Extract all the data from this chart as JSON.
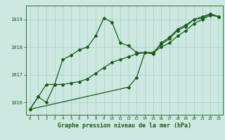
{
  "title": "Graphe pression niveau de la mer (hPa)",
  "bg_color": "#cce8e0",
  "grid_color": "#a8cfc8",
  "line_color": "#1a5c1a",
  "xlim": [
    -0.5,
    23.5
  ],
  "ylim": [
    1015.55,
    1019.5
  ],
  "yticks": [
    1016,
    1017,
    1018,
    1019
  ],
  "xticks": [
    0,
    1,
    2,
    3,
    4,
    5,
    6,
    7,
    8,
    9,
    10,
    11,
    12,
    13,
    14,
    15,
    16,
    17,
    18,
    19,
    20,
    21,
    22,
    23
  ],
  "series_bump": [
    1015.75,
    1016.2,
    1016.0,
    1016.65,
    1017.55,
    1017.7,
    1017.9,
    1018.0,
    1018.4,
    1019.05,
    1018.9,
    1018.15,
    1018.05,
    1017.8,
    1017.8,
    1017.75,
    1018.15,
    1018.35,
    1018.65,
    1018.8,
    1019.0,
    1019.1,
    1019.2,
    1019.1
  ],
  "series_flat": [
    1015.75,
    1016.2,
    1016.65,
    1016.65,
    1016.65,
    1016.7,
    1016.75,
    1016.85,
    1017.05,
    1017.25,
    1017.45,
    1017.55,
    1017.65,
    1017.75,
    1017.8,
    1017.8,
    1018.0,
    1018.15,
    1018.4,
    1018.6,
    1018.85,
    1019.0,
    1019.15,
    1019.1
  ],
  "series_main": [
    1015.75,
    null,
    null,
    null,
    null,
    null,
    null,
    null,
    null,
    null,
    null,
    null,
    1016.55,
    1016.9,
    1017.8,
    1017.8,
    1018.1,
    1018.3,
    1018.6,
    1018.75,
    1019.0,
    1019.05,
    1019.2,
    1019.1
  ]
}
